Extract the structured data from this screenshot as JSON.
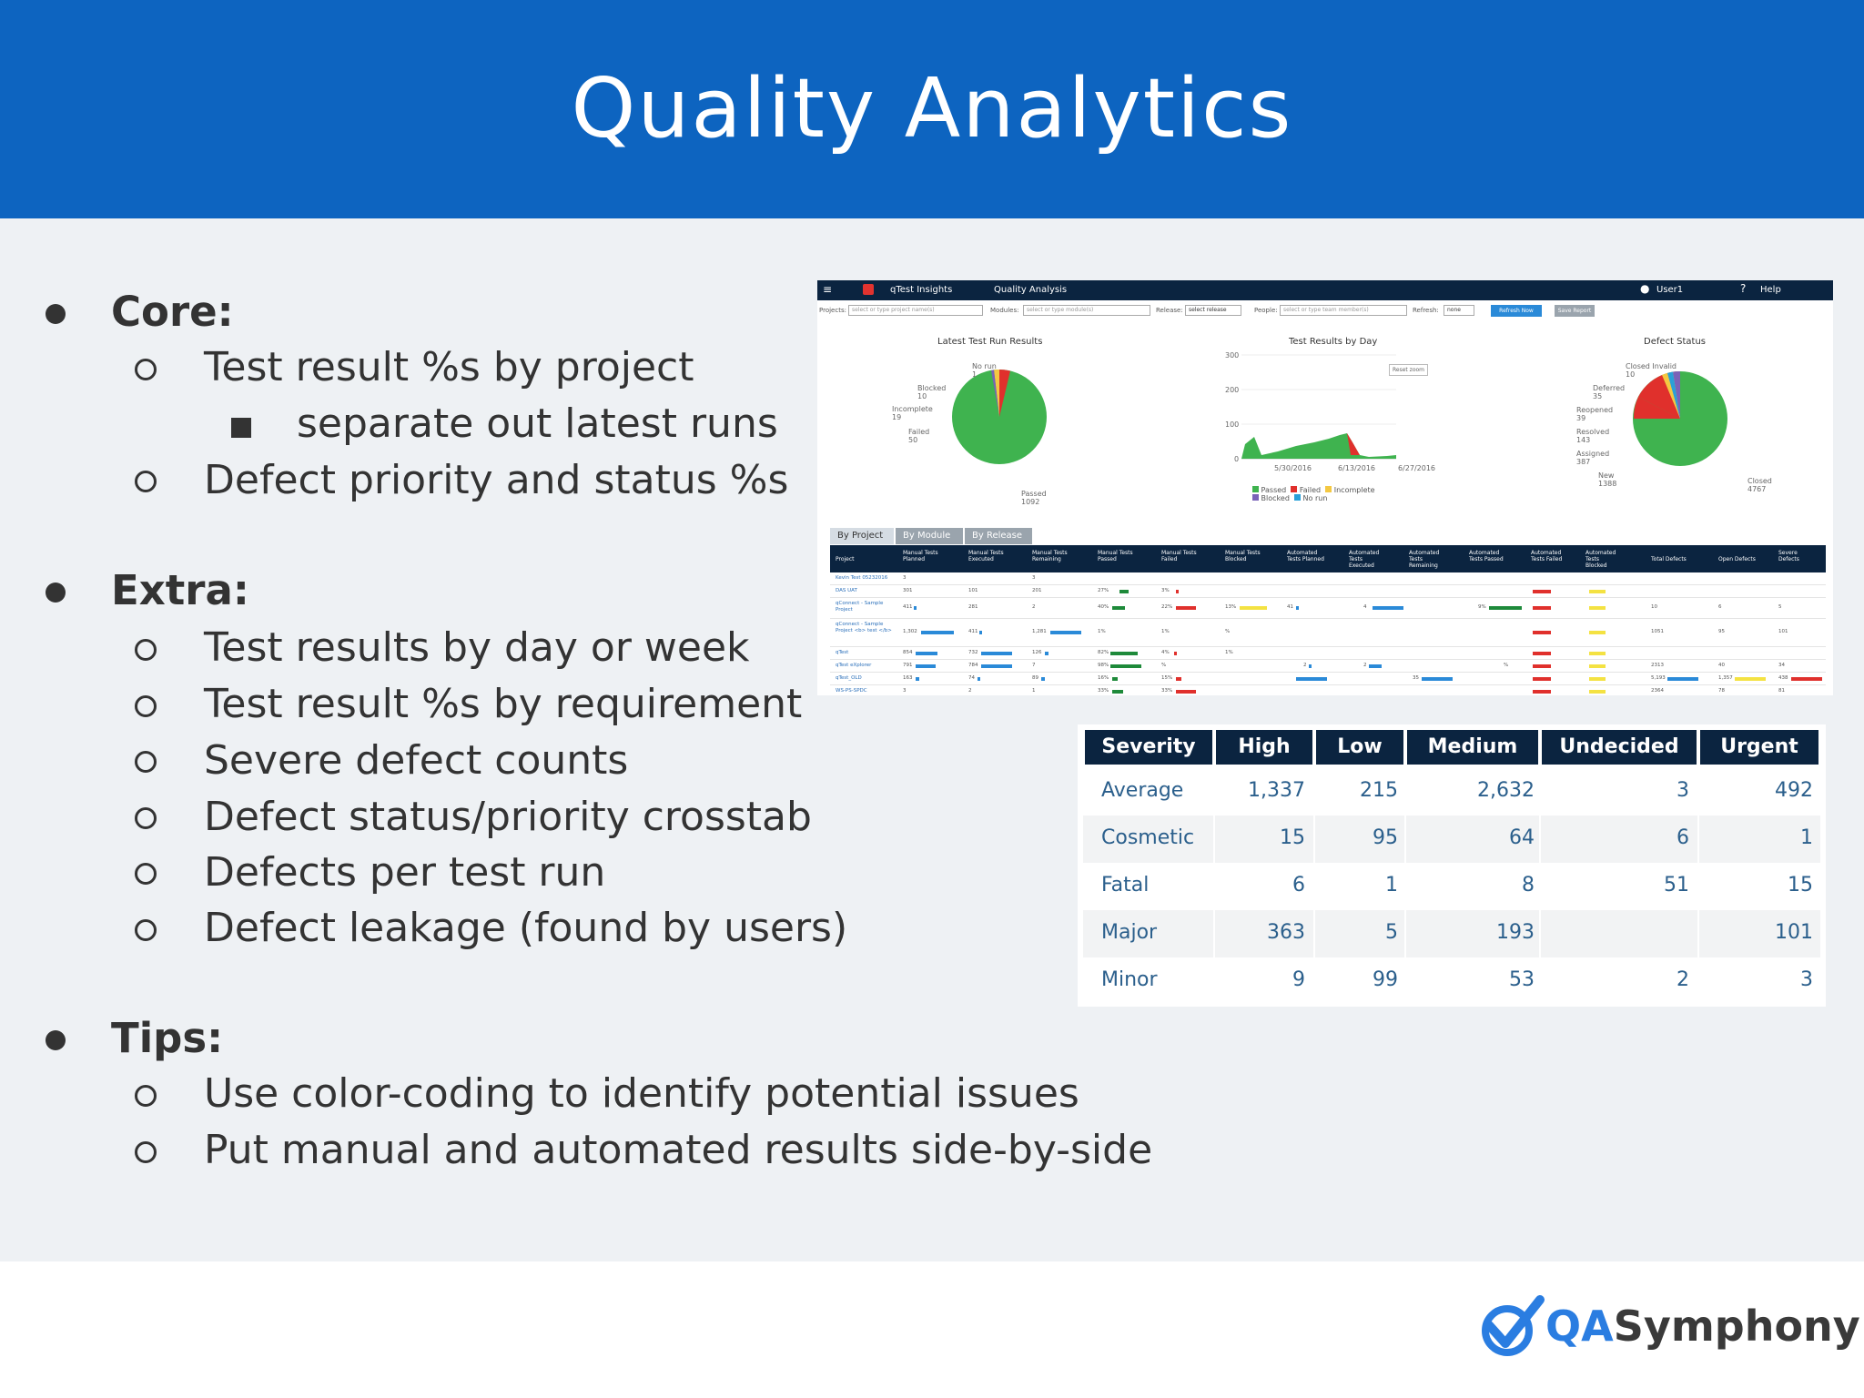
{
  "slide": {
    "title": "Quality Analytics"
  },
  "bullets": {
    "core": {
      "heading": "Core:",
      "items": [
        "Test result %s by project",
        "separate out latest runs",
        "Defect priority and status %s"
      ]
    },
    "extra": {
      "heading": "Extra:",
      "items": [
        "Test results by day or week",
        "Test result %s by requirement",
        "Severe defect counts",
        "Defect status/priority crosstab",
        "Defects per test run",
        "Defect leakage (found by users)"
      ]
    },
    "tips": {
      "heading": "Tips:",
      "items": [
        "Use color-coding to identify potential issues",
        "Put manual and automated results side-by-side"
      ]
    }
  },
  "dashboard": {
    "app_name": "qTest Insights",
    "section": "Quality Analysis",
    "user": "User1",
    "help": "Help",
    "filters": {
      "projects_label": "Projects:",
      "projects_placeholder": "select or type project name(s)",
      "modules_label": "Modules:",
      "modules_placeholder": "select or type module(s)",
      "release_label": "Release:",
      "release_value": "select release",
      "people_label": "People:",
      "people_placeholder": "select or type team member(s)",
      "refresh_label": "Refresh:",
      "refresh_value": "none",
      "refresh_button": "Refresh Now",
      "save_button": "Save Report"
    },
    "charts": {
      "latest_title": "Latest Test Run Results",
      "latest_labels": {
        "norun": "No run",
        "norun_v": "1",
        "blocked": "Blocked",
        "blocked_v": "10",
        "incomplete": "Incomplete",
        "incomplete_v": "19",
        "failed": "Failed",
        "failed_v": "50",
        "passed": "Passed",
        "passed_v": "1092"
      },
      "byday_title": "Test Results by Day",
      "byday_y": [
        "300",
        "200",
        "100",
        "0"
      ],
      "byday_x": [
        "5/30/2016",
        "6/13/2016",
        "6/27/2016"
      ],
      "byday_reset": "Reset zoom",
      "byday_legend": [
        "Passed",
        "Failed",
        "Incomplete",
        "Blocked",
        "No run"
      ],
      "defect_title": "Defect Status",
      "defect_labels": {
        "closed_invalid": "Closed Invalid",
        "closed_invalid_v": "10",
        "deferred": "Deferred",
        "deferred_v": "35",
        "reopened": "Reopened",
        "reopened_v": "39",
        "resolved": "Resolved",
        "resolved_v": "143",
        "assigned": "Assigned",
        "assigned_v": "387",
        "new": "New",
        "new_v": "1388",
        "closed": "Closed",
        "closed_v": "4767"
      }
    },
    "tabs": [
      "By Project",
      "By Module",
      "By Release"
    ],
    "table_headers": [
      "Project",
      "Manual Tests Planned",
      "Manual Tests Executed",
      "Manual Tests Remaining",
      "Manual Tests Passed",
      "Manual Tests Failed",
      "Manual Tests Blocked",
      "Automated Tests Planned",
      "Automated Tests Executed",
      "Automated Tests Remaining",
      "Automated Tests Passed",
      "Automated Tests Failed",
      "Automated Tests Blocked",
      "Total Defects",
      "Open Defects",
      "Severe Defects"
    ],
    "rows": [
      {
        "project": "Kevin Test 05232016",
        "mp": "3",
        "me": "",
        "mr": "3"
      },
      {
        "project": "DAS UAT",
        "mp": "301",
        "me": "101",
        "mr": "201",
        "pa": "27%",
        "fa": "3%"
      },
      {
        "project": "qConnect - Sample Project",
        "mp": "411",
        "me": "281",
        "mr": "2",
        "pa": "40%",
        "fa": "22%",
        "bl": "13%",
        "ap": "41",
        "ae": "4",
        "ar": "",
        "apa": "9%",
        "td": "10",
        "od": "6",
        "sd": "5"
      },
      {
        "project": "qConnect - Sample Project <b> test </b>",
        "mp": "1,302",
        "me": "411",
        "mr": "1,281",
        "pa": "1%",
        "fa": "1%",
        "bl": "%",
        "td": "1051",
        "od": "95",
        "sd": "101"
      },
      {
        "project": "qTest",
        "mp": "854",
        "me": "732",
        "mr": "126",
        "pa": "82%",
        "fa": "4%",
        "bl": "1%"
      },
      {
        "project": "qTest eXplorer",
        "mp": "791",
        "me": "784",
        "mr": "7",
        "pa": "98%",
        "fa": "%",
        "ap": "2",
        "ae": "2",
        "apa": "%",
        "td": "2313",
        "od": "40",
        "sd": "34"
      },
      {
        "project": "qTest_OLD",
        "mp": "163",
        "me": "74",
        "mr": "89",
        "pa": "16%",
        "fa": "15%",
        "ap": "",
        "ae": "",
        "ar": "35",
        "td": "5,193",
        "od": "1,357",
        "sd": "438"
      },
      {
        "project": "WS-PS-SPDC",
        "mp": "3",
        "me": "2",
        "mr": "1",
        "pa": "33%",
        "fa": "33%",
        "td": "2364",
        "od": "78",
        "sd": "81"
      }
    ]
  },
  "severity_table": {
    "headers": [
      "Severity",
      "High",
      "Low",
      "Medium",
      "Undecided",
      "Urgent"
    ],
    "rows": [
      [
        "Average",
        "1,337",
        "215",
        "2,632",
        "3",
        "492"
      ],
      [
        "Cosmetic",
        "15",
        "95",
        "64",
        "6",
        "1"
      ],
      [
        "Fatal",
        "6",
        "1",
        "8",
        "51",
        "15"
      ],
      [
        "Major",
        "363",
        "5",
        "193",
        "",
        "101"
      ],
      [
        "Minor",
        "9",
        "99",
        "53",
        "2",
        "3"
      ]
    ]
  },
  "logo": {
    "qa": "QA",
    "rest": "Symphony"
  }
}
